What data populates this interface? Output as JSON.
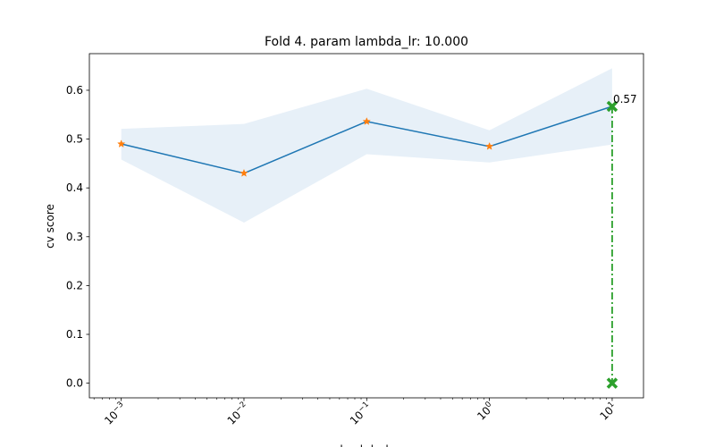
{
  "chart_data": {
    "type": "line",
    "title": "Fold 4. param lambda_lr: 10.000",
    "xlabel": "lambda_lr",
    "ylabel": "cv score",
    "xscale": "log",
    "x": [
      0.001,
      0.01,
      0.1,
      1,
      10
    ],
    "xlim": [
      0.00055,
      18
    ],
    "ylim": [
      -0.03,
      0.675
    ],
    "xtick_labels": [
      {
        "base": "10",
        "exp": "−3"
      },
      {
        "base": "10",
        "exp": "−2"
      },
      {
        "base": "10",
        "exp": "−1"
      },
      {
        "base": "10",
        "exp": "0"
      },
      {
        "base": "10",
        "exp": "1"
      }
    ],
    "yticks": [
      0.0,
      0.1,
      0.2,
      0.3,
      0.4,
      0.5,
      0.6
    ],
    "ytick_labels": [
      "0.0",
      "0.1",
      "0.2",
      "0.3",
      "0.4",
      "0.5",
      "0.6"
    ],
    "grid": false,
    "series": [
      {
        "values": [
          0.49,
          0.43,
          0.536,
          0.485,
          0.567
        ],
        "band_upper": [
          0.521,
          0.531,
          0.603,
          0.518,
          0.645
        ],
        "band_lower": [
          0.458,
          0.329,
          0.469,
          0.452,
          0.489
        ],
        "line_color": "#1f77b4",
        "marker_color": "#ff7f0e",
        "band_color": "#e7f0f8"
      }
    ],
    "best": {
      "x": 10,
      "y": 0.567,
      "label": "0.57",
      "color": "#2ca02c"
    }
  }
}
